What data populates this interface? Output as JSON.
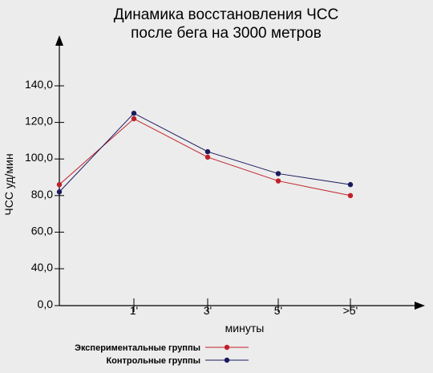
{
  "chart_data": {
    "type": "line",
    "title_line1": "Динамика восстановления ЧСС",
    "title_line2": "после бега на 3000 метров",
    "xlabel": "минуты",
    "ylabel": "ЧСС уд/мин",
    "categories": [
      "",
      "1'",
      "3'",
      "5'",
      ">5'"
    ],
    "y_ticks": [
      "0,0",
      "40,0",
      "60,0",
      "80,0",
      "100,0",
      "120,0",
      "140,0"
    ],
    "y_tick_values": [
      0,
      40,
      60,
      80,
      100,
      120,
      140
    ],
    "grid": false,
    "legend_position": "bottom-left",
    "series": [
      {
        "name": "Экспериментальные группы",
        "color": "#c0202a",
        "values": [
          86,
          122,
          101,
          88,
          80
        ]
      },
      {
        "name": "Контрольные группы",
        "color": "#1a1a5e",
        "values": [
          82,
          125,
          104,
          92,
          86
        ]
      }
    ]
  }
}
